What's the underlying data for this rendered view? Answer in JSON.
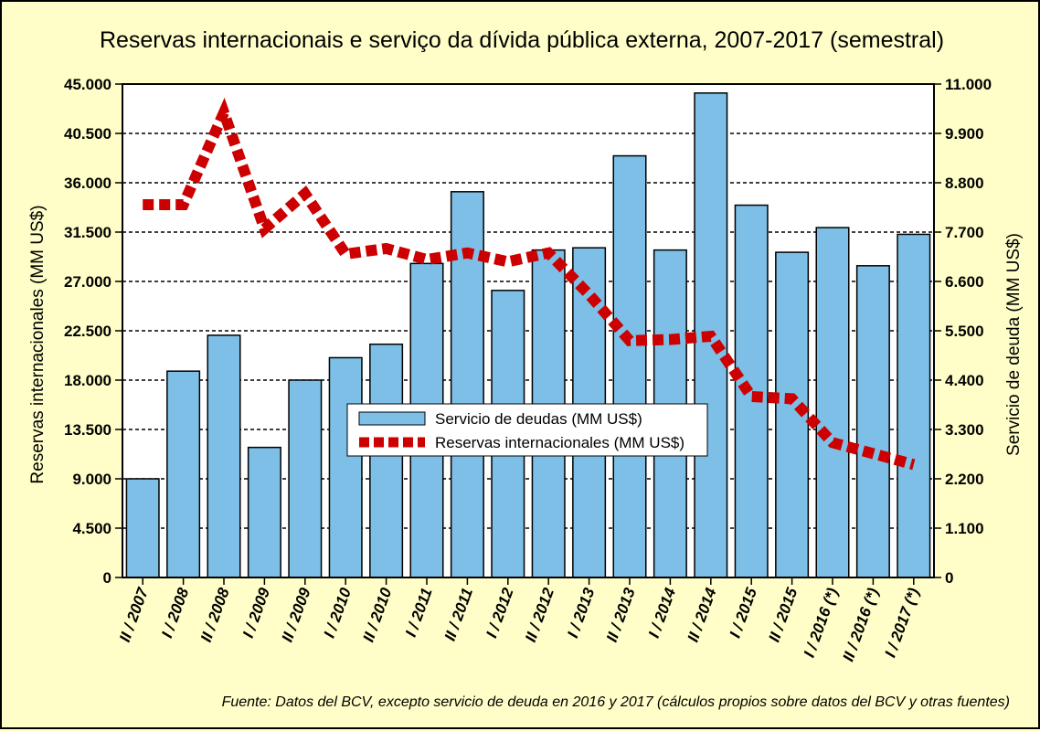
{
  "colors": {
    "background": "#fffec8",
    "bar_fill": "#7dbfe6",
    "line": "#cc0000"
  },
  "chart_data": {
    "type": "bar+line",
    "title": "Reservas internacionais e serviço da dívida pública externa, 2007-2017 (semestral)",
    "categories": [
      "II / 2007",
      "I / 2008",
      "II / 2008",
      "I / 2009",
      "II / 2009",
      "I / 2010",
      "II / 2010",
      "I / 2011",
      "II / 2011",
      "I / 2012",
      "II / 2012",
      "I / 2013",
      "II / 2013",
      "I / 2014",
      "II / 2014",
      "I / 2015",
      "II / 2015",
      "I / 2016 (*)",
      "II / 2016 (*)",
      "I / 2017 (*)"
    ],
    "series": [
      {
        "name": "Servicio de deudas (MM US$)",
        "type": "bar",
        "axis": "right",
        "values": [
          2200,
          4600,
          5400,
          2900,
          4400,
          4900,
          5200,
          7000,
          8600,
          6400,
          7300,
          7350,
          9400,
          7300,
          10800,
          8300,
          7250,
          7800,
          6950,
          7650
        ]
      },
      {
        "name": "Reservas internacionales (MM US$)",
        "type": "line",
        "axis": "left",
        "values": [
          34000,
          34000,
          42400,
          31800,
          35000,
          29500,
          30000,
          29000,
          29600,
          28800,
          29600,
          25800,
          21600,
          21700,
          22000,
          16500,
          16300,
          12300,
          11300,
          10300
        ]
      }
    ],
    "ylabel_left": "Reservas internacionales (MM US$)",
    "ylabel_right": "Servicio de deuda (MM US$)",
    "ylim_left": [
      0,
      45000
    ],
    "ylim_right": [
      0,
      11000
    ],
    "yticks_left": [
      "0",
      "4.500",
      "9.000",
      "13.500",
      "18.000",
      "22.500",
      "27.000",
      "31.500",
      "36.000",
      "40.500",
      "45.000"
    ],
    "yticks_right": [
      "0",
      "1.100",
      "2.200",
      "3.300",
      "4.400",
      "5.500",
      "6.600",
      "7.700",
      "8.800",
      "9.900",
      "11.000"
    ],
    "grid": true,
    "legend": [
      "Servicio de deudas (MM US$)",
      "Reservas internacionales (MM US$)"
    ],
    "legend_position": "center",
    "source": "Fuente: Datos del BCV, excepto servicio de deuda en 2016 y 2017 (cálculos propios sobre datos del BCV y otras fuentes)"
  }
}
